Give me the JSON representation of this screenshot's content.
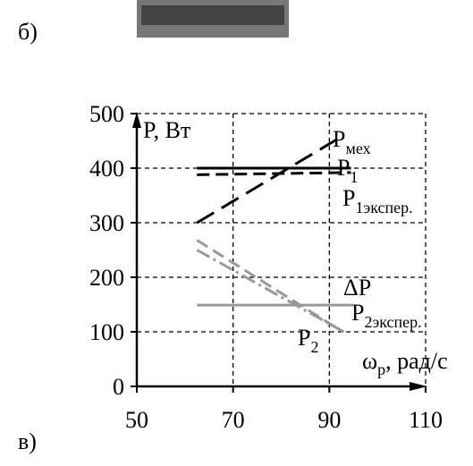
{
  "panel_top_label": "б)",
  "panel_bottom_label": "в)",
  "chart_data": {
    "type": "line",
    "y_label": "P, Вт",
    "x_label": {
      "base": "ω",
      "sub": "р",
      "rest": ", рад/с"
    },
    "xlim": [
      50,
      110
    ],
    "ylim": [
      0,
      500
    ],
    "xticks": [
      50,
      70,
      90,
      110
    ],
    "yticks": [
      0,
      100,
      200,
      300,
      400,
      500
    ],
    "grid": true,
    "series": [
      {
        "label": {
          "base": "P",
          "sub": "мех"
        },
        "color": "#000000",
        "style": "longdash",
        "x": [
          62.5,
          92
        ],
        "values": [
          300,
          455
        ]
      },
      {
        "label": {
          "base": "P",
          "sub": "1"
        },
        "color": "#000000",
        "style": "solid",
        "x": [
          62.5,
          94.5
        ],
        "values": [
          400,
          400
        ]
      },
      {
        "label": {
          "base": "P",
          "sub": "1экспер."
        },
        "color": "#000000",
        "style": "dash",
        "x": [
          62.5,
          94.5
        ],
        "values": [
          388,
          392
        ]
      },
      {
        "label": {
          "base": "P",
          "sub": "2"
        },
        "color": "#999999",
        "style": "dash",
        "x": [
          62.5,
          91
        ],
        "values": [
          268,
          110
        ]
      },
      {
        "label": {
          "base": "P",
          "sub": "2экспер."
        },
        "color": "#999999",
        "style": "dashdot",
        "x": [
          62.5,
          93
        ],
        "values": [
          250,
          100
        ]
      },
      {
        "label": {
          "base": "ΔP",
          "sub": ""
        },
        "color": "#999999",
        "style": "solid",
        "x": [
          62.5,
          95
        ],
        "values": [
          149,
          149
        ]
      }
    ]
  }
}
